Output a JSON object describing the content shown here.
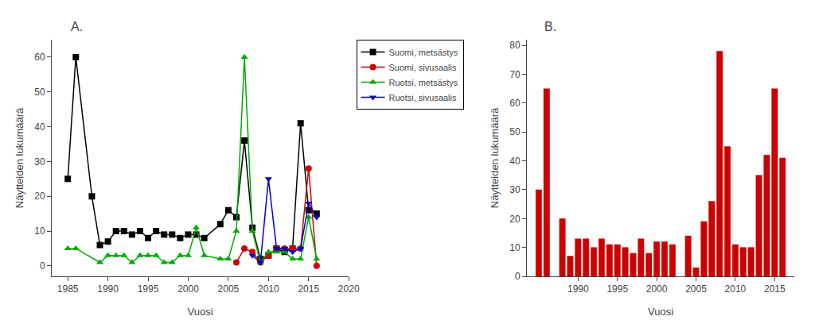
{
  "chart_data": [
    {
      "type": "line",
      "title": "A.",
      "xlabel": "Vuosi",
      "ylabel": "Näytteiden lukumäärä",
      "series": [
        {
          "name": "Suomi, metsästys",
          "color": "#000000",
          "marker": "square",
          "x": [
            1985,
            1986,
            1988,
            1989,
            1990,
            1991,
            1992,
            1993,
            1994,
            1995,
            1996,
            1997,
            1998,
            1999,
            2000,
            2001,
            2002,
            2004,
            2005,
            2006,
            2007,
            2008,
            2009,
            2010,
            2011,
            2012,
            2013,
            2014,
            2015,
            2016
          ],
          "values": [
            25,
            60,
            20,
            6,
            7,
            10,
            10,
            9,
            10,
            8,
            10,
            9,
            9,
            8,
            9,
            9,
            8,
            12,
            16,
            14,
            36,
            11,
            2,
            3,
            5,
            4,
            5,
            41,
            16,
            15
          ]
        },
        {
          "name": "Suomi, sivusaalis",
          "color": "#cc0000",
          "marker": "circle",
          "x": [
            2006,
            2007,
            2008,
            2009,
            2010,
            2011,
            2012,
            2013,
            2014,
            2015,
            2016
          ],
          "values": [
            1,
            5,
            4,
            1,
            3,
            5,
            5,
            5,
            5,
            28,
            0
          ]
        },
        {
          "name": "Ruotsi, metsästys",
          "color": "#00aa00",
          "marker": "triangle-up",
          "x": [
            1985,
            1986,
            1989,
            1990,
            1991,
            1992,
            1993,
            1994,
            1995,
            1996,
            1997,
            1998,
            1999,
            2000,
            2001,
            2002,
            2004,
            2005,
            2006,
            2007,
            2008,
            2009,
            2010,
            2011,
            2012,
            2013,
            2014,
            2015,
            2016
          ],
          "values": [
            5,
            5,
            1,
            3,
            3,
            3,
            1,
            3,
            3,
            3,
            1,
            1,
            3,
            3,
            11,
            3,
            2,
            2,
            10,
            60,
            10,
            1,
            4,
            4,
            4,
            2,
            2,
            14,
            2
          ]
        },
        {
          "name": "Ruotsi, sivusaalis",
          "color": "#0000cc",
          "marker": "triangle-down",
          "x": [
            2008,
            2009,
            2010,
            2011,
            2012,
            2013,
            2014,
            2015,
            2016
          ],
          "values": [
            3,
            1,
            25,
            5,
            5,
            4,
            5,
            18,
            14
          ]
        }
      ],
      "xlim": [
        1983,
        2020
      ],
      "ylim": [
        -3,
        65
      ],
      "xticks": [
        1985,
        1990,
        1995,
        2000,
        2005,
        2010,
        2015,
        2020
      ],
      "yticks": [
        0,
        10,
        20,
        30,
        40,
        50,
        60
      ],
      "grid": false,
      "legend": "upper right"
    },
    {
      "type": "bar",
      "title": "B.",
      "xlabel": "Vuosi",
      "ylabel": "Näytteiden lukumäärä",
      "x": [
        1985,
        1986,
        1988,
        1989,
        1990,
        1991,
        1992,
        1993,
        1994,
        1995,
        1996,
        1997,
        1998,
        1999,
        2000,
        2001,
        2002,
        2004,
        2005,
        2006,
        2007,
        2008,
        2009,
        2010,
        2011,
        2012,
        2013,
        2014,
        2015,
        2016
      ],
      "values": [
        30,
        65,
        20,
        7,
        13,
        13,
        10,
        13,
        11,
        11,
        10,
        8,
        13,
        8,
        12,
        12,
        11,
        14,
        3,
        19,
        26,
        78,
        45,
        11,
        10,
        10,
        35,
        42,
        65,
        41
      ],
      "color": "#cc0000",
      "xlim": [
        1983.5,
        2017.5
      ],
      "ylim": [
        0,
        82
      ],
      "xticks": [
        1990,
        1995,
        2000,
        2005,
        2010,
        2015
      ],
      "yticks": [
        0,
        10,
        20,
        30,
        40,
        50,
        60,
        70,
        80
      ],
      "grid": false
    }
  ]
}
